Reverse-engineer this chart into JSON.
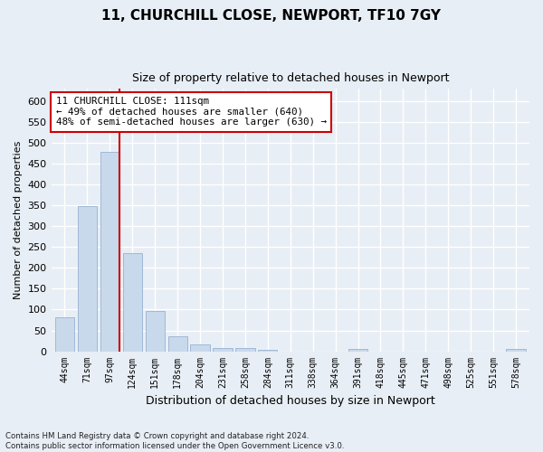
{
  "title_line1": "11, CHURCHILL CLOSE, NEWPORT, TF10 7GY",
  "title_line2": "Size of property relative to detached houses in Newport",
  "xlabel": "Distribution of detached houses by size in Newport",
  "ylabel": "Number of detached properties",
  "bar_color": "#c9d9ec",
  "bar_edge_color": "#a0b8d8",
  "categories": [
    "44sqm",
    "71sqm",
    "97sqm",
    "124sqm",
    "151sqm",
    "178sqm",
    "204sqm",
    "231sqm",
    "258sqm",
    "284sqm",
    "311sqm",
    "338sqm",
    "364sqm",
    "391sqm",
    "418sqm",
    "445sqm",
    "471sqm",
    "498sqm",
    "525sqm",
    "551sqm",
    "578sqm"
  ],
  "values": [
    82,
    348,
    478,
    235,
    96,
    37,
    16,
    8,
    8,
    4,
    0,
    0,
    0,
    5,
    0,
    0,
    0,
    0,
    0,
    0,
    5
  ],
  "ylim": [
    0,
    630
  ],
  "yticks": [
    0,
    50,
    100,
    150,
    200,
    250,
    300,
    350,
    400,
    450,
    500,
    550,
    600
  ],
  "vline_bar_index": 2,
  "vline_color": "#cc0000",
  "annotation_text": "11 CHURCHILL CLOSE: 111sqm\n← 49% of detached houses are smaller (640)\n48% of semi-detached houses are larger (630) →",
  "annotation_box_facecolor": "#ffffff",
  "annotation_box_edgecolor": "#cc0000",
  "footer_text": "Contains HM Land Registry data © Crown copyright and database right 2024.\nContains public sector information licensed under the Open Government Licence v3.0.",
  "bg_color": "#e8eef5",
  "plot_bg_color": "#e8eef5",
  "grid_color": "#ffffff",
  "title1_fontsize": 11,
  "title2_fontsize": 9,
  "ylabel_fontsize": 8,
  "xlabel_fontsize": 9,
  "tick_fontsize": 8,
  "xtick_fontsize": 7
}
